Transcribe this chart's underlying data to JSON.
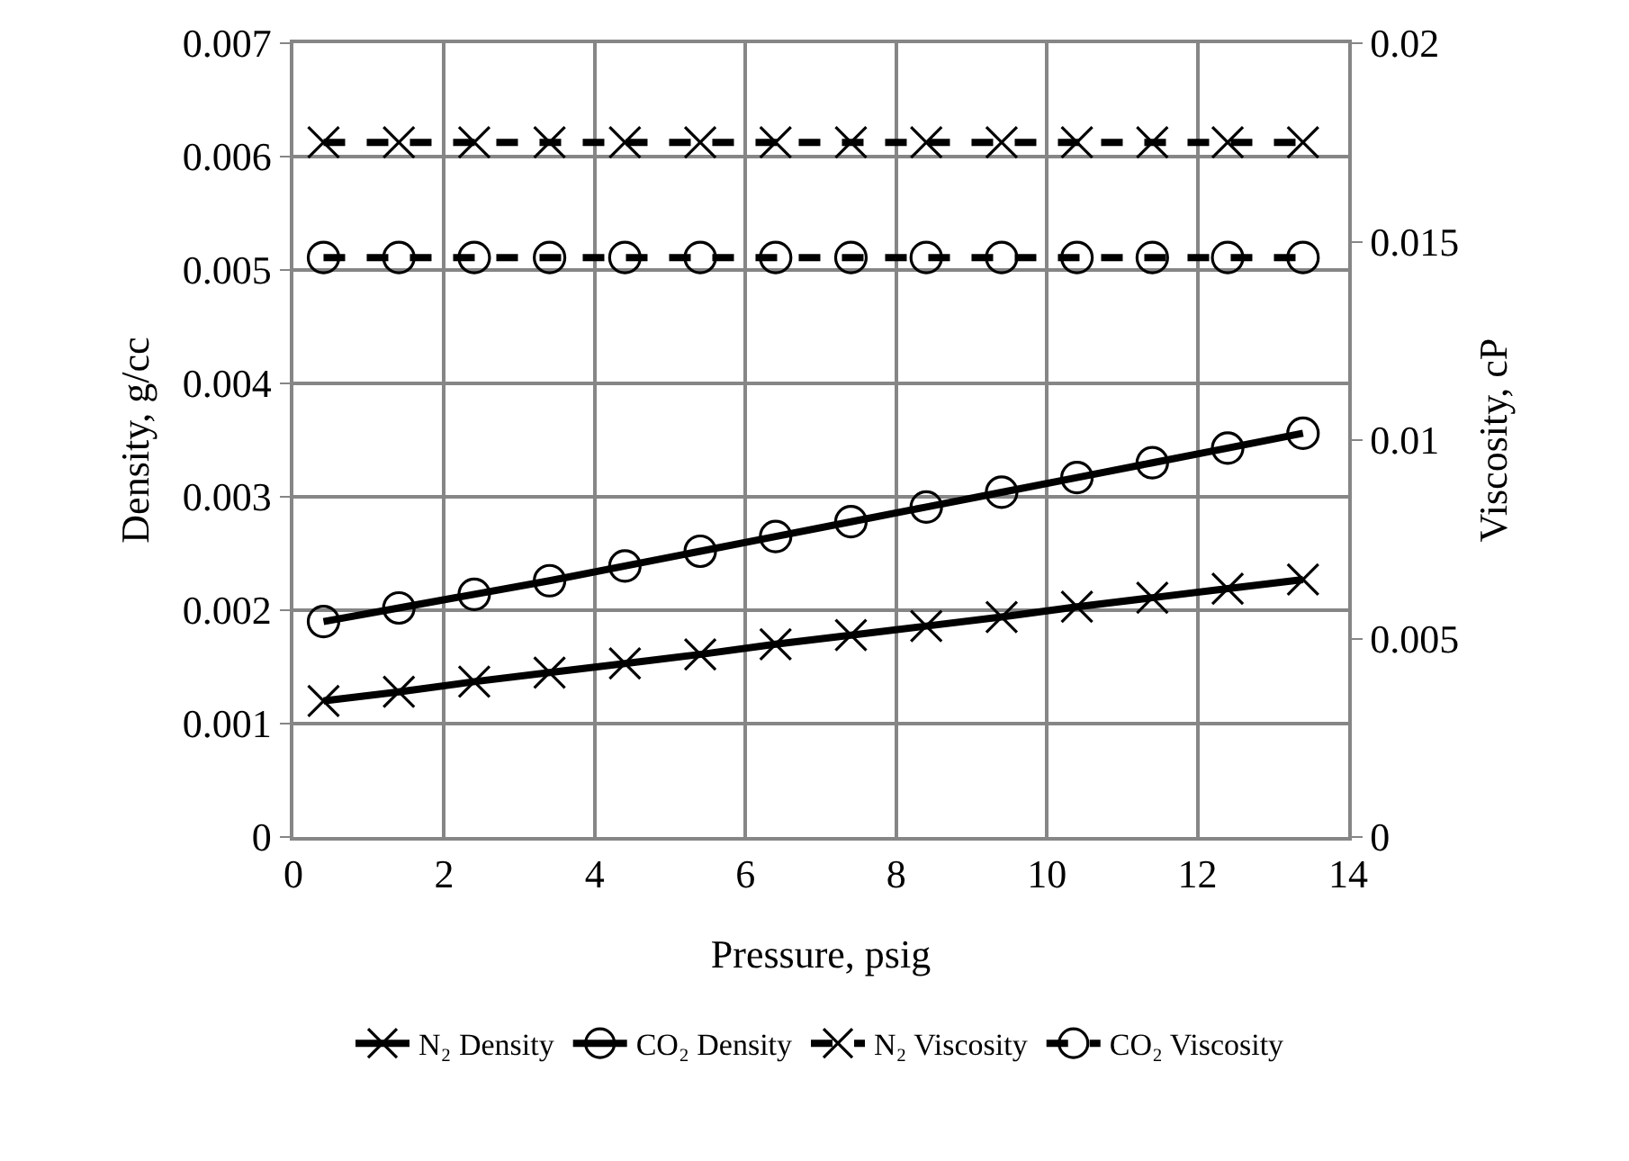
{
  "chart_data": {
    "type": "line",
    "xlabel": "Pressure, psig",
    "ylabel": "Density, g/cc",
    "y2label": "Viscosity, cP",
    "x": [
      0.4,
      1.4,
      2.4,
      3.4,
      4.4,
      5.4,
      6.4,
      7.4,
      8.4,
      9.4,
      10.4,
      11.4,
      12.4,
      13.4
    ],
    "xlim": [
      0,
      14
    ],
    "xticks": [
      0,
      2,
      4,
      6,
      8,
      10,
      12,
      14
    ],
    "ylim": [
      0,
      0.007
    ],
    "yticks": [
      0,
      0.001,
      0.002,
      0.003,
      0.004,
      0.005,
      0.006,
      0.007
    ],
    "y2lim": [
      0,
      0.02
    ],
    "y2ticks": [
      0,
      0.005,
      0.01,
      0.015,
      0.02
    ],
    "grid": true,
    "legend": "bottom",
    "series": [
      {
        "name": "N₂ Density",
        "color": "#000000",
        "marker": "cross",
        "line_style": "solid",
        "values": [
          0.0012,
          0.00128,
          0.00137,
          0.00145,
          0.00153,
          0.00161,
          0.0017,
          0.00178,
          0.00186,
          0.00194,
          0.00203,
          0.00211,
          0.00219,
          0.00227
        ]
      },
      {
        "name": "CO₂ Density",
        "color": "#000000",
        "marker": "circle",
        "line_style": "solid",
        "values": [
          0.0019,
          0.00202,
          0.00214,
          0.00226,
          0.00239,
          0.00252,
          0.00265,
          0.00278,
          0.00291,
          0.00304,
          0.00317,
          0.0033,
          0.00343,
          0.00356
        ]
      },
      {
        "name": "N₂ Viscosity",
        "color": "#000000",
        "marker": "cross",
        "line_style": "dashed",
        "axis": "y2",
        "values": [
          0.0175,
          0.0175,
          0.0175,
          0.0175,
          0.0175,
          0.0175,
          0.0175,
          0.0175,
          0.0175,
          0.0175,
          0.0175,
          0.0175,
          0.0175,
          0.0175
        ]
      },
      {
        "name": "CO₂ Viscosity",
        "color": "#000000",
        "marker": "circle",
        "line_style": "dashed",
        "axis": "y2",
        "values": [
          0.0146,
          0.0146,
          0.0146,
          0.0146,
          0.0146,
          0.0146,
          0.0146,
          0.0146,
          0.0146,
          0.0146,
          0.0146,
          0.0146,
          0.0146,
          0.0146
        ]
      }
    ]
  }
}
